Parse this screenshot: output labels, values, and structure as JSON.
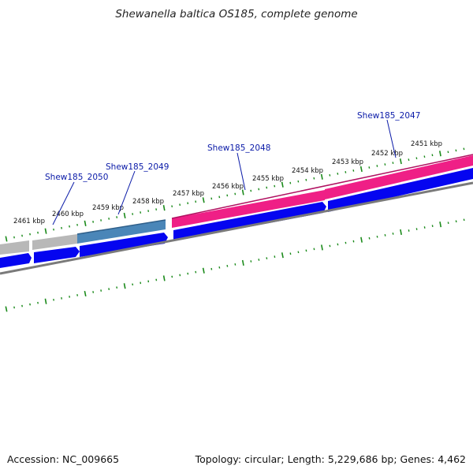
{
  "title": "Shewanella baltica OS185, complete genome",
  "footer": {
    "accession": "Accession: NC_009665",
    "summary": "Topology: circular; Length: 5,229,686 bp; Genes: 4,462"
  },
  "colors": {
    "tick": "#1a8a1a",
    "gene_label": "#0a1aa8",
    "cds_blue": "#0505f0",
    "highlight_pink": "#ef1f86",
    "highlight_steel": "#4a86b8",
    "highlight_gray": "#b8b8b8",
    "backbone": "#7a7a7a"
  },
  "kbp_labels": [
    "2461 kbp",
    "2460 kbp",
    "2459 kbp",
    "2458 kbp",
    "2457 kbp",
    "2456 kbp",
    "2455 kbp",
    "2454 kbp",
    "2453 kbp",
    "2452 kbp",
    "2451 kbp"
  ],
  "gene_labels": [
    "Shew185_2050",
    "Shew185_2049",
    "Shew185_2048",
    "Shew185_2047"
  ]
}
